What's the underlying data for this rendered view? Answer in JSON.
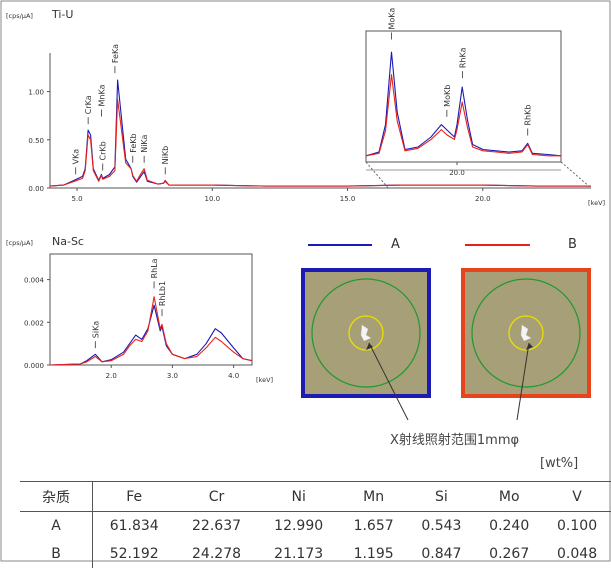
{
  "chart_data": [
    {
      "type": "line",
      "title": "Ti-U",
      "ylabel": "[cps/μA]",
      "xlabel": "[keV]",
      "xlim": [
        4,
        24
      ],
      "ylim": [
        0,
        1.4
      ],
      "x_ticks": [
        {
          "v": 5,
          "label": "5.0"
        },
        {
          "v": 10,
          "label": "10.0"
        },
        {
          "v": 15,
          "label": "15.0"
        },
        {
          "v": 20,
          "label": "20.0"
        }
      ],
      "y_ticks": [
        {
          "v": 0,
          "label": "0.00"
        },
        {
          "v": 0.5,
          "label": "0.50"
        },
        {
          "v": 1.0,
          "label": "1.00"
        }
      ],
      "series": [
        {
          "name": "A",
          "color": "#1a1ab5",
          "x": [
            4.0,
            4.5,
            4.9,
            5.2,
            5.3,
            5.41,
            5.5,
            5.6,
            5.8,
            5.9,
            5.95,
            6.2,
            6.4,
            6.5,
            6.8,
            7.0,
            7.06,
            7.2,
            7.3,
            7.48,
            7.6,
            8.0,
            8.2,
            8.26,
            8.4,
            10,
            12,
            15,
            17,
            19,
            20,
            22,
            24
          ],
          "y": [
            0.02,
            0.03,
            0.08,
            0.12,
            0.2,
            0.6,
            0.55,
            0.2,
            0.08,
            0.14,
            0.1,
            0.14,
            0.22,
            1.12,
            0.3,
            0.2,
            0.12,
            0.06,
            0.1,
            0.17,
            0.07,
            0.04,
            0.05,
            0.07,
            0.03,
            0.03,
            0.02,
            0.02,
            0.03,
            0.03,
            0.03,
            0.02,
            0.02
          ]
        },
        {
          "name": "B",
          "color": "#e8201c",
          "x": [
            4.0,
            4.5,
            4.9,
            5.2,
            5.3,
            5.41,
            5.5,
            5.6,
            5.8,
            5.9,
            5.95,
            6.2,
            6.4,
            6.5,
            6.8,
            7.0,
            7.06,
            7.2,
            7.3,
            7.48,
            7.6,
            8.0,
            8.2,
            8.26,
            8.4,
            10,
            12,
            15,
            17,
            19,
            20,
            22,
            24
          ],
          "y": [
            0.02,
            0.03,
            0.07,
            0.1,
            0.18,
            0.55,
            0.5,
            0.18,
            0.07,
            0.13,
            0.09,
            0.12,
            0.18,
            0.92,
            0.26,
            0.2,
            0.13,
            0.07,
            0.12,
            0.2,
            0.08,
            0.04,
            0.05,
            0.08,
            0.03,
            0.03,
            0.02,
            0.02,
            0.03,
            0.03,
            0.03,
            0.02,
            0.02
          ]
        }
      ],
      "annotations": [
        {
          "label": "VKa",
          "x": 4.95,
          "y": 0.1
        },
        {
          "label": "CrKa",
          "x": 5.41,
          "y": 0.62
        },
        {
          "label": "MnKa",
          "x": 5.9,
          "y": 0.7
        },
        {
          "label": "CrKb",
          "x": 5.95,
          "y": 0.14
        },
        {
          "label": "FeKa",
          "x": 6.4,
          "y": 1.15
        },
        {
          "label": "FeKb",
          "x": 7.06,
          "y": 0.22
        },
        {
          "label": "NiKa",
          "x": 7.48,
          "y": 0.22
        },
        {
          "label": "NiKb",
          "x": 8.26,
          "y": 0.1
        }
      ]
    },
    {
      "type": "line",
      "title": "",
      "inset_of": "Ti-U",
      "xlim": [
        16.5,
        24
      ],
      "x_ticks": [
        {
          "v": 20,
          "label": "20.0"
        }
      ],
      "series": [
        {
          "name": "A",
          "color": "#1a1ab5",
          "x": [
            16.5,
            17.0,
            17.25,
            17.48,
            17.7,
            18.0,
            18.5,
            19.0,
            19.4,
            19.6,
            19.9,
            20.0,
            20.2,
            20.4,
            20.6,
            21.0,
            21.5,
            22.0,
            22.5,
            22.72,
            22.9,
            23.5,
            24.0
          ],
          "y": [
            0.05,
            0.08,
            0.3,
            0.88,
            0.4,
            0.1,
            0.12,
            0.2,
            0.3,
            0.26,
            0.2,
            0.3,
            0.6,
            0.34,
            0.14,
            0.1,
            0.09,
            0.08,
            0.09,
            0.15,
            0.07,
            0.06,
            0.05
          ]
        },
        {
          "name": "B",
          "color": "#e8201c",
          "x": [
            16.5,
            17.0,
            17.25,
            17.48,
            17.7,
            18.0,
            18.5,
            19.0,
            19.4,
            19.6,
            19.9,
            20.0,
            20.2,
            20.4,
            20.6,
            21.0,
            21.5,
            22.0,
            22.5,
            22.72,
            22.9,
            23.5,
            24.0
          ],
          "y": [
            0.05,
            0.07,
            0.25,
            0.7,
            0.33,
            0.09,
            0.11,
            0.18,
            0.26,
            0.22,
            0.18,
            0.26,
            0.48,
            0.28,
            0.12,
            0.09,
            0.08,
            0.07,
            0.08,
            0.14,
            0.06,
            0.05,
            0.05
          ]
        }
      ],
      "annotations": [
        {
          "label": "MoKa",
          "x": 17.48,
          "y": 0.95
        },
        {
          "label": "MoKb",
          "x": 19.61,
          "y": 0.33
        },
        {
          "label": "RhKa",
          "x": 20.21,
          "y": 0.64
        },
        {
          "label": "RhKb",
          "x": 22.72,
          "y": 0.18
        }
      ]
    },
    {
      "type": "line",
      "title": "Na-Sc",
      "ylabel": "[cps/μA]",
      "xlabel": "[keV]",
      "xlim": [
        1.0,
        4.3
      ],
      "ylim": [
        0,
        0.0052
      ],
      "x_ticks": [
        {
          "v": 2,
          "label": "2.0"
        },
        {
          "v": 3,
          "label": "3.0"
        },
        {
          "v": 4,
          "label": "4.0"
        }
      ],
      "y_ticks": [
        {
          "v": 0,
          "label": "0.000"
        },
        {
          "v": 0.002,
          "label": "0.002"
        },
        {
          "v": 0.004,
          "label": "0.004"
        }
      ],
      "series": [
        {
          "name": "A",
          "color": "#1a1ab5",
          "x": [
            1.0,
            1.5,
            1.6,
            1.74,
            1.85,
            2.0,
            2.2,
            2.3,
            2.4,
            2.5,
            2.6,
            2.7,
            2.8,
            2.83,
            2.9,
            3.0,
            3.2,
            3.4,
            3.55,
            3.7,
            3.8,
            4.0,
            4.15,
            4.3
          ],
          "y": [
            0.0,
            5e-05,
            0.0002,
            0.0005,
            0.00015,
            0.00025,
            0.0006,
            0.001,
            0.0014,
            0.0012,
            0.0017,
            0.0028,
            0.0016,
            0.0018,
            0.0009,
            0.0005,
            0.0003,
            0.0005,
            0.001,
            0.0017,
            0.0015,
            0.0008,
            0.0003,
            0.0002
          ]
        },
        {
          "name": "B",
          "color": "#e8201c",
          "x": [
            1.0,
            1.5,
            1.6,
            1.74,
            1.85,
            2.0,
            2.2,
            2.3,
            2.4,
            2.5,
            2.6,
            2.7,
            2.8,
            2.83,
            2.9,
            3.0,
            3.2,
            3.4,
            3.55,
            3.7,
            3.8,
            4.0,
            4.15,
            4.3
          ],
          "y": [
            0.0,
            5e-05,
            0.00015,
            0.0004,
            0.00015,
            0.0002,
            0.0005,
            0.0009,
            0.0012,
            0.0011,
            0.0016,
            0.0032,
            0.0017,
            0.0019,
            0.001,
            0.0005,
            0.0003,
            0.0004,
            0.0008,
            0.0013,
            0.0011,
            0.0006,
            0.0003,
            0.0002
          ]
        }
      ],
      "annotations": [
        {
          "label": "SiKa",
          "x": 1.74,
          "y": 0.0006
        },
        {
          "label": "RhLa",
          "x": 2.7,
          "y": 0.0034
        },
        {
          "label": "RhLb1",
          "x": 2.83,
          "y": 0.0021
        }
      ]
    }
  ],
  "legend": {
    "a_label": "A",
    "b_label": "B",
    "a_color": "#1a1ab5",
    "b_color": "#e8201c"
  },
  "samples": {
    "a_border": "#1c1cb5",
    "b_border": "#e8441c",
    "spot_caption": "X射线照射范围1mmφ"
  },
  "table": {
    "unit": "[wt%]",
    "headers": [
      "杂质",
      "Fe",
      "Cr",
      "Ni",
      "Mn",
      "Si",
      "Mo",
      "V"
    ],
    "rows": [
      [
        "A",
        "61.834",
        "22.637",
        "12.990",
        "1.657",
        "0.543",
        "0.240",
        "0.100"
      ],
      [
        "B",
        "52.192",
        "24.278",
        "21.173",
        "1.195",
        "0.847",
        "0.267",
        "0.048"
      ]
    ]
  }
}
